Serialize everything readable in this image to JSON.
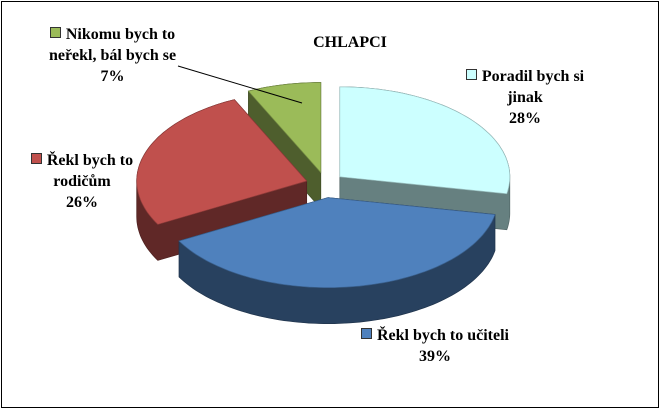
{
  "chart_data": {
    "type": "pie",
    "title": "CHLAPCI",
    "categories": [
      "Poradil bych si jinak",
      "Řekl bych to učiteli",
      "Řekl bych to rodičům",
      "Nikomu bych to neřekl, bál bych se"
    ],
    "values": [
      28,
      39,
      26,
      7
    ],
    "value_labels": [
      "28%",
      "39%",
      "26%",
      "7%"
    ],
    "colors": [
      "#ccffff",
      "#4f81bd",
      "#c0504d",
      "#9bbb59"
    ]
  }
}
